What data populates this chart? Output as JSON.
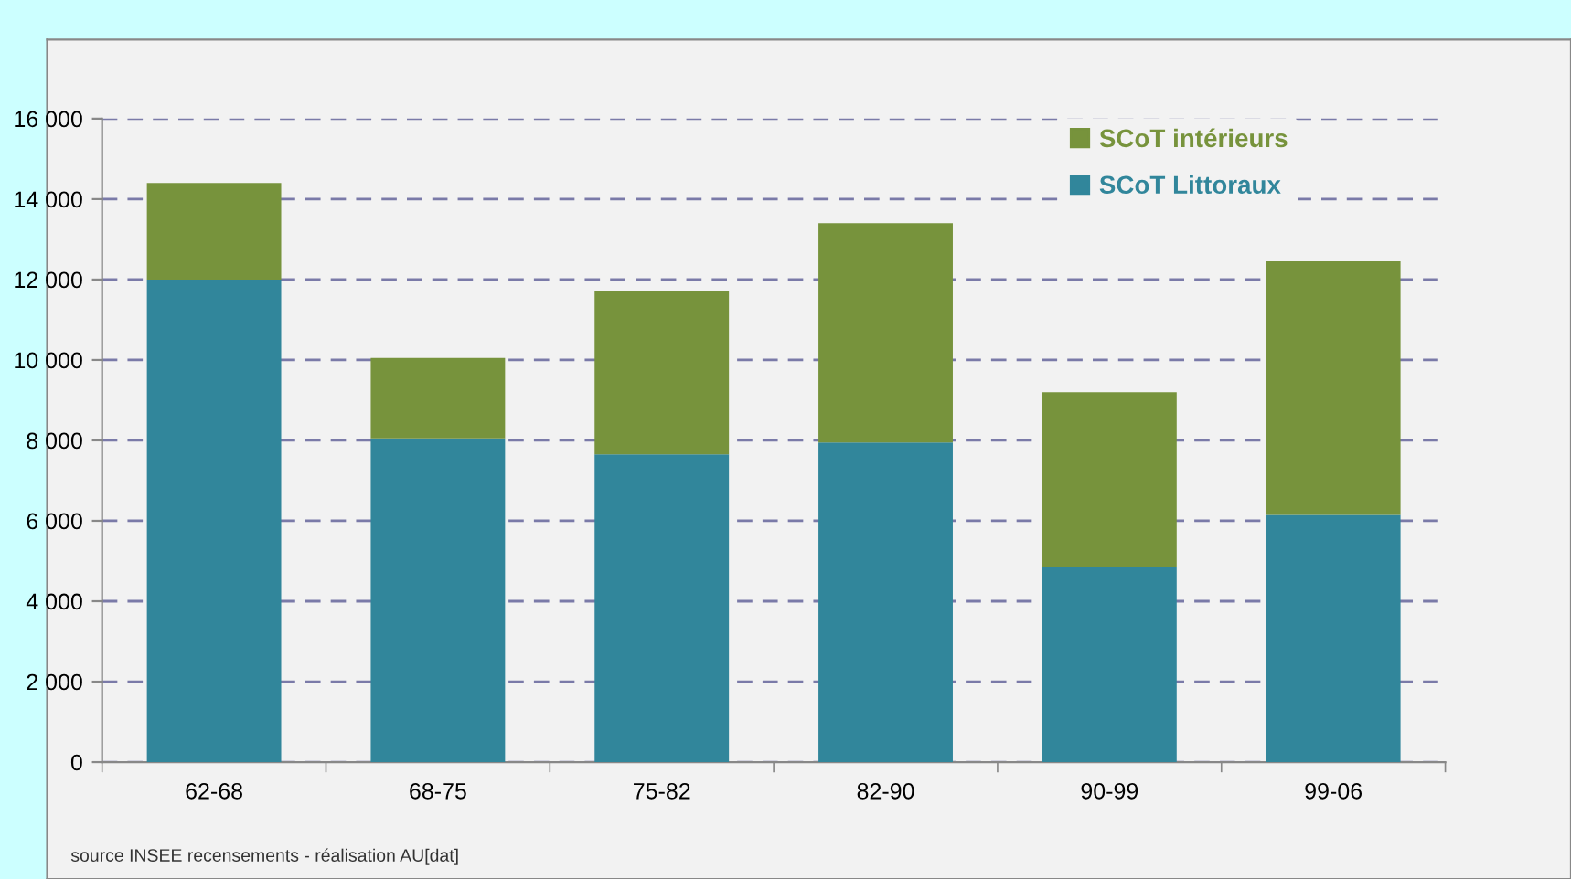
{
  "chart_data": {
    "type": "bar",
    "stacked": true,
    "categories": [
      "62-68",
      "68-75",
      "75-82",
      "82-90",
      "90-99",
      "99-06"
    ],
    "series": [
      {
        "name": "SCoT Littoraux",
        "color": "#31869b",
        "values": [
          12000,
          8050,
          7650,
          7950,
          4850,
          6150
        ]
      },
      {
        "name": "SCoT intérieurs",
        "color": "#77933c",
        "values": [
          2400,
          2000,
          4050,
          5450,
          4350,
          6300
        ]
      }
    ],
    "ylim": [
      0,
      16000
    ],
    "yticks": [
      {
        "value": 0,
        "label": "0"
      },
      {
        "value": 2000,
        "label": "2 000"
      },
      {
        "value": 4000,
        "label": "4 000"
      },
      {
        "value": 6000,
        "label": "6 000"
      },
      {
        "value": 8000,
        "label": "8 000"
      },
      {
        "value": 10000,
        "label": "10 000"
      },
      {
        "value": 12000,
        "label": "12 000"
      },
      {
        "value": 14000,
        "label": "14 000"
      },
      {
        "value": 16000,
        "label": "16 000"
      }
    ],
    "grid": "y",
    "legend": "top right",
    "annotations": [
      "source INSEE recensements - réalisation AU[dat]"
    ]
  }
}
